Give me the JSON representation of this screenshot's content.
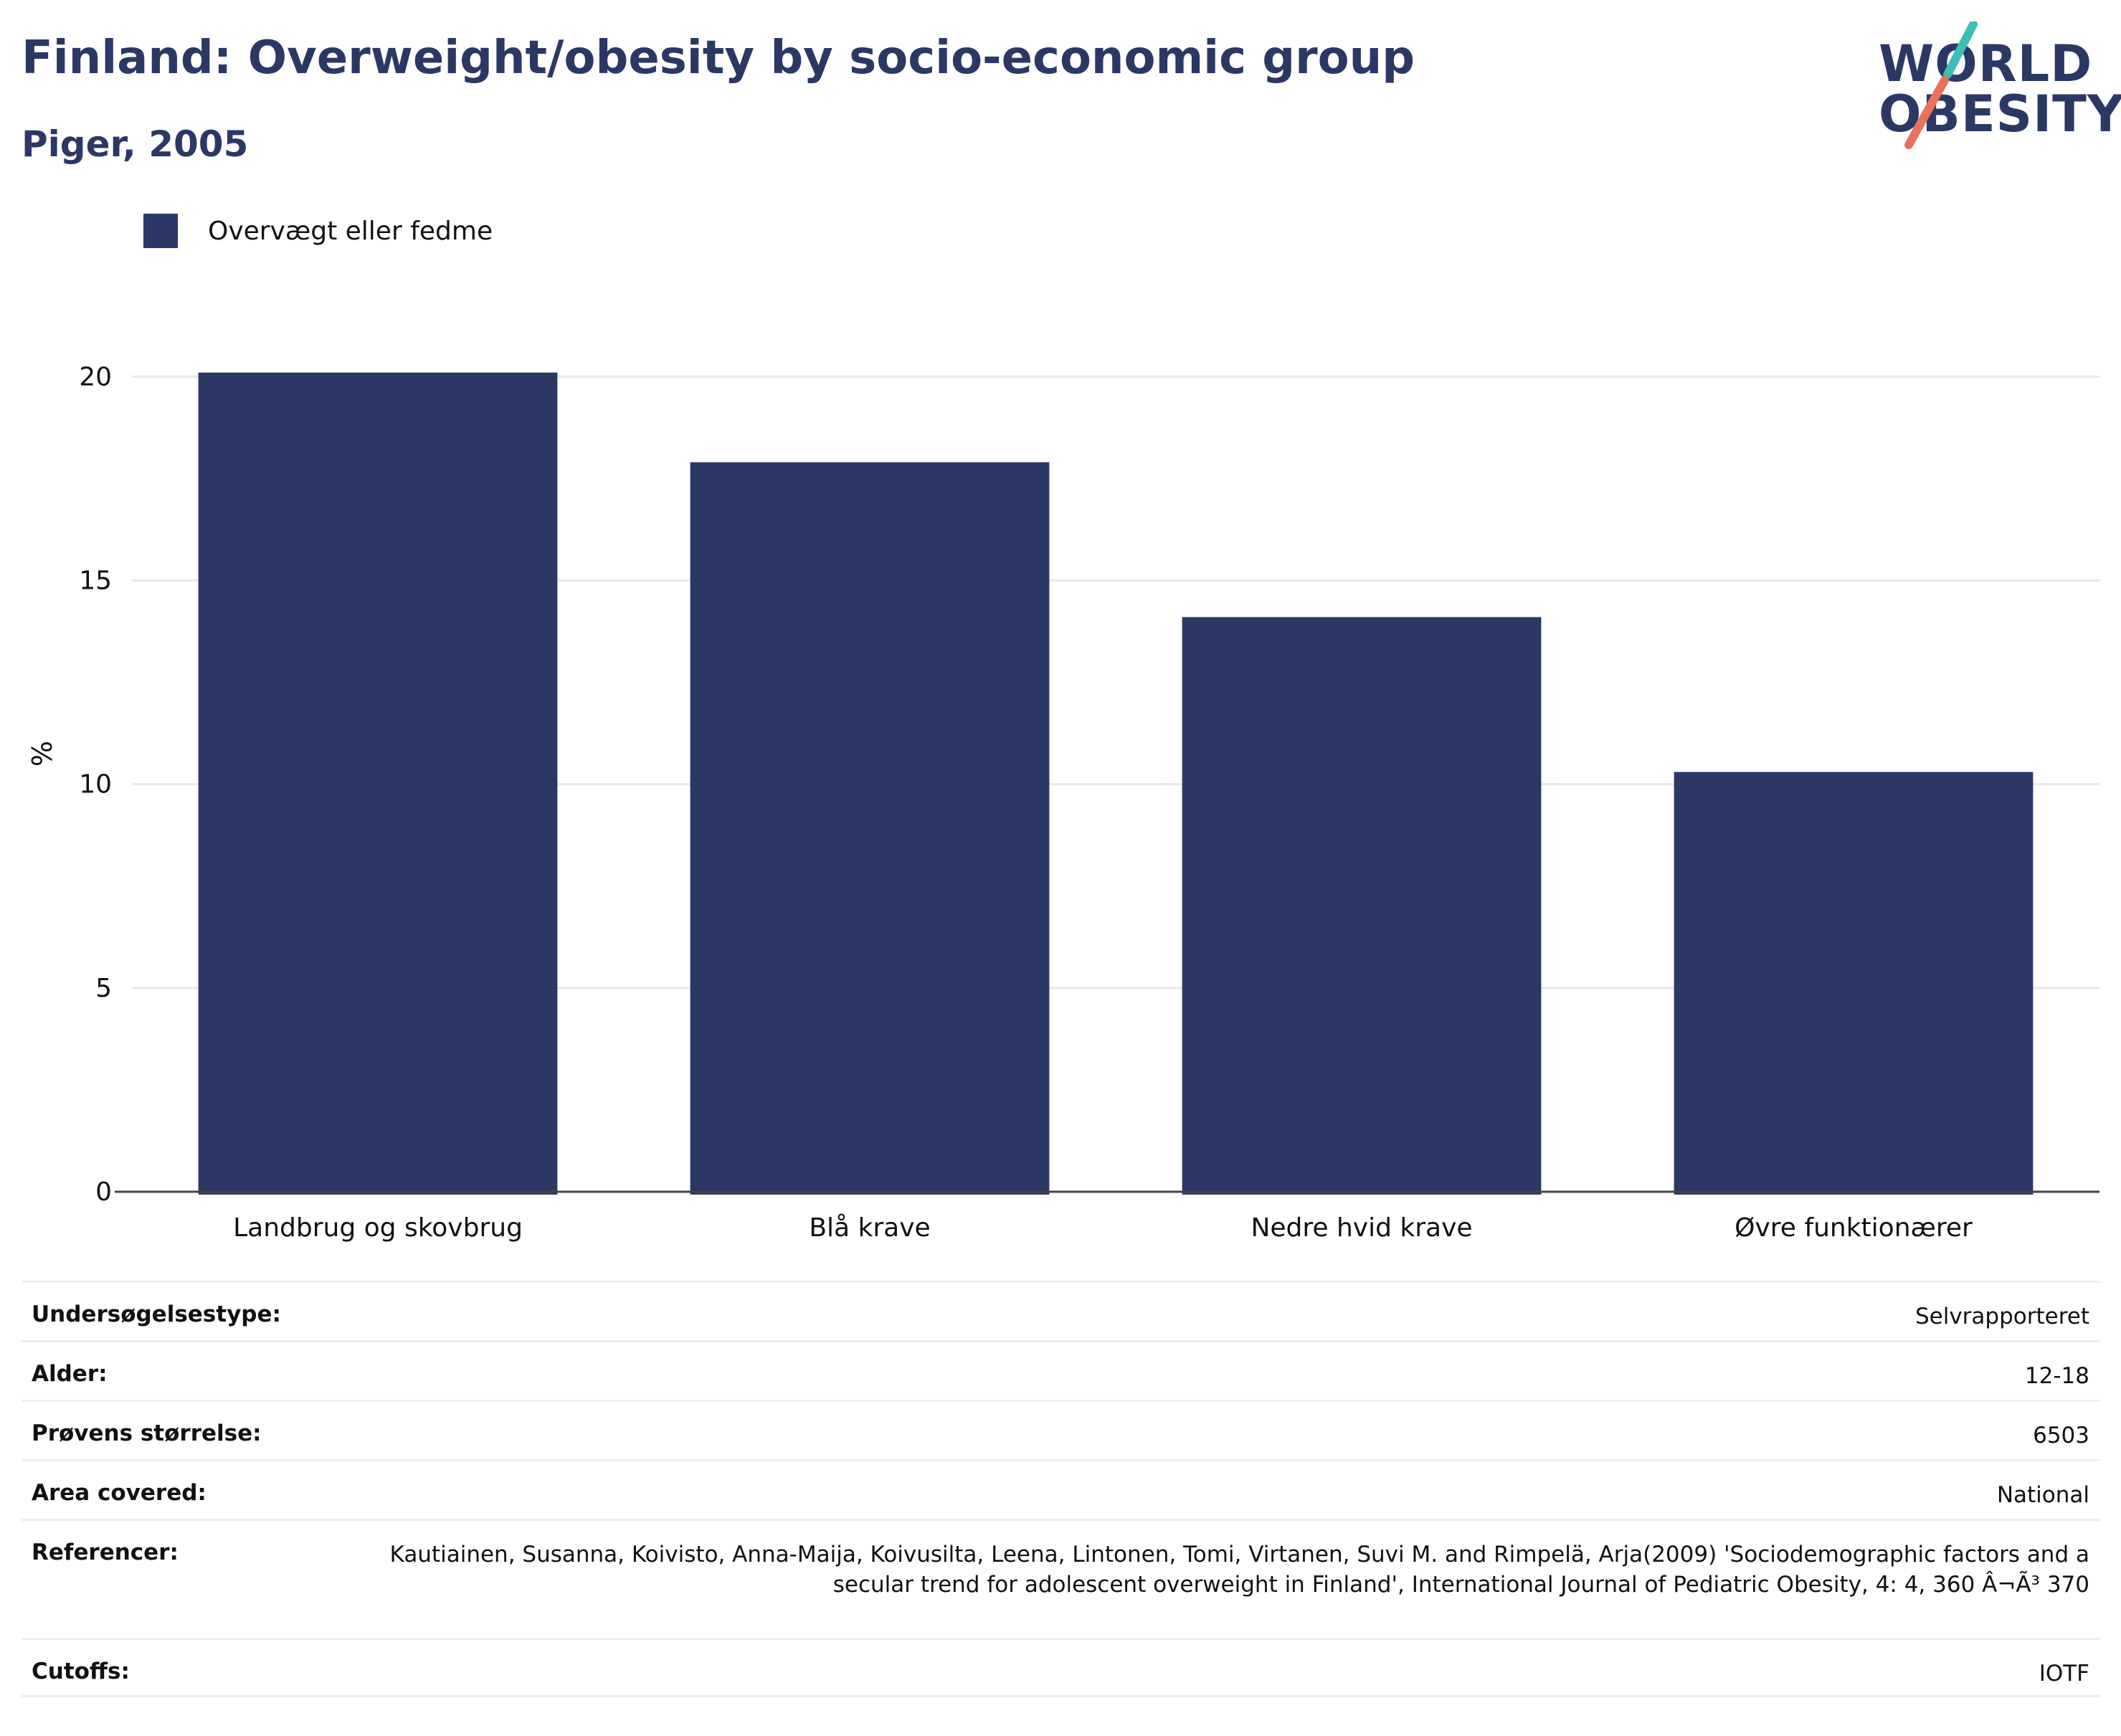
{
  "header": {
    "title": "Finland: Overweight/obesity by socio-economic group",
    "subtitle": "Piger, 2005"
  },
  "logo": {
    "line1": "WORLD",
    "line2": "OBESITY",
    "slash_colors": [
      "#3cbfb4",
      "#e8725c"
    ],
    "text_color": "#2b3866"
  },
  "chart_data": {
    "type": "bar",
    "categories": [
      "Landbrug og skovbrug",
      "Blå krave",
      "Nedre hvid krave",
      "Øvre funktionærer"
    ],
    "series": [
      {
        "name": "Overvægt eller fedme",
        "values": [
          20.1,
          17.9,
          14.1,
          10.3
        ],
        "color": "#2b3866"
      }
    ],
    "ylabel": "%",
    "xlabel": "",
    "ylim": [
      0,
      21.5
    ],
    "yticks": [
      0,
      5,
      10,
      15,
      20
    ],
    "grid": true,
    "legend_position": "top-left"
  },
  "info_table": [
    {
      "key": "Undersøgelsestype:",
      "value": "Selvrapporteret"
    },
    {
      "key": "Alder:",
      "value": "12-18"
    },
    {
      "key": "Prøvens størrelse:",
      "value": "6503"
    },
    {
      "key": "Area covered:",
      "value": "National"
    },
    {
      "key": "Referencer:",
      "value": "Kautiainen, Susanna, Koivisto, Anna-Maija, Koivusilta, Leena, Lintonen, Tomi, Virtanen, Suvi M. and Rimpelä, Arja(2009) 'Sociodemographic factors and a secular trend for adolescent overweight in Finland', International Journal of Pediatric Obesity, 4: 4, 360 Â¬Ã³ 370"
    },
    {
      "key": "Cutoffs:",
      "value": "IOTF"
    }
  ]
}
